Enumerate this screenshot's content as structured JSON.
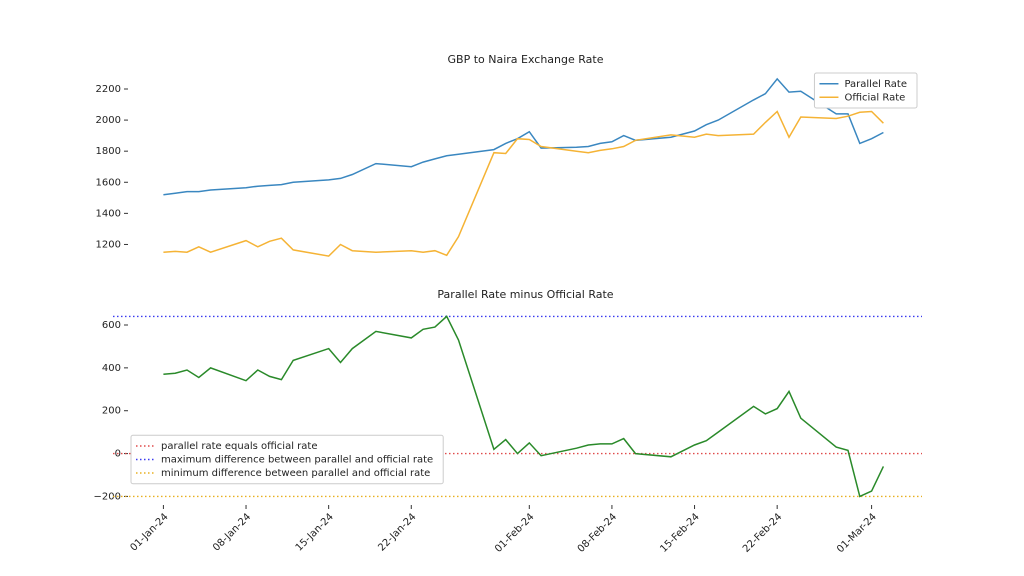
{
  "chart_data": [
    {
      "type": "line",
      "title": "GBP to Naira Exchange Rate",
      "x": [
        "2024-01-01",
        "2024-01-02",
        "2024-01-03",
        "2024-01-04",
        "2024-01-05",
        "2024-01-08",
        "2024-01-09",
        "2024-01-10",
        "2024-01-11",
        "2024-01-12",
        "2024-01-15",
        "2024-01-16",
        "2024-01-17",
        "2024-01-19",
        "2024-01-22",
        "2024-01-23",
        "2024-01-24",
        "2024-01-25",
        "2024-01-26",
        "2024-01-29",
        "2024-01-30",
        "2024-01-31",
        "2024-02-01",
        "2024-02-02",
        "2024-02-05",
        "2024-02-06",
        "2024-02-07",
        "2024-02-08",
        "2024-02-09",
        "2024-02-10",
        "2024-02-13",
        "2024-02-15",
        "2024-02-16",
        "2024-02-17",
        "2024-02-20",
        "2024-02-21",
        "2024-02-22",
        "2024-02-23",
        "2024-02-24",
        "2024-02-27",
        "2024-02-28",
        "2024-02-29",
        "2024-03-01",
        "2024-03-02"
      ],
      "series": [
        {
          "name": "Parallel Rate",
          "color": "#3a87c0",
          "values": [
            1520,
            1530,
            1540,
            1540,
            1550,
            1565,
            1575,
            1580,
            1585,
            1600,
            1615,
            1625,
            1650,
            1720,
            1700,
            1730,
            1750,
            1770,
            1780,
            1810,
            1850,
            1880,
            1925,
            1820,
            1825,
            1830,
            1850,
            1860,
            1900,
            1870,
            1890,
            1930,
            1970,
            2000,
            2130,
            2170,
            2265,
            2180,
            2185,
            2040,
            2040,
            1850,
            1880,
            1920
          ]
        },
        {
          "name": "Official Rate",
          "color": "#f5b335",
          "values": [
            1150,
            1155,
            1150,
            1185,
            1150,
            1225,
            1185,
            1220,
            1240,
            1165,
            1125,
            1200,
            1160,
            1150,
            1160,
            1150,
            1160,
            1130,
            1250,
            1790,
            1785,
            1880,
            1875,
            1830,
            1800,
            1790,
            1805,
            1815,
            1830,
            1870,
            1905,
            1890,
            1910,
            1900,
            1910,
            1985,
            2055,
            1890,
            2020,
            2010,
            2025,
            2050,
            2055,
            1980
          ]
        }
      ],
      "xlim": [
        "2023-12-29",
        "2024-03-04"
      ],
      "ylim": [
        1100,
        2290
      ],
      "yticks": [
        1200,
        1400,
        1600,
        1800,
        2000,
        2200
      ],
      "legend": "upper right"
    },
    {
      "type": "line",
      "title": "Parallel Rate minus Official Rate",
      "x": [
        "2024-01-01",
        "2024-01-02",
        "2024-01-03",
        "2024-01-04",
        "2024-01-05",
        "2024-01-08",
        "2024-01-09",
        "2024-01-10",
        "2024-01-11",
        "2024-01-12",
        "2024-01-15",
        "2024-01-16",
        "2024-01-17",
        "2024-01-19",
        "2024-01-22",
        "2024-01-23",
        "2024-01-24",
        "2024-01-25",
        "2024-01-26",
        "2024-01-29",
        "2024-01-30",
        "2024-01-31",
        "2024-02-01",
        "2024-02-02",
        "2024-02-05",
        "2024-02-06",
        "2024-02-07",
        "2024-02-08",
        "2024-02-09",
        "2024-02-10",
        "2024-02-13",
        "2024-02-15",
        "2024-02-16",
        "2024-02-17",
        "2024-02-20",
        "2024-02-21",
        "2024-02-22",
        "2024-02-23",
        "2024-02-24",
        "2024-02-27",
        "2024-02-28",
        "2024-02-29",
        "2024-03-01",
        "2024-03-02"
      ],
      "series": [
        {
          "color": "#2a8a2a",
          "values": [
            370,
            375,
            390,
            355,
            400,
            340,
            390,
            360,
            345,
            435,
            490,
            425,
            490,
            570,
            540,
            580,
            590,
            640,
            530,
            20,
            65,
            0,
            50,
            -10,
            25,
            40,
            45,
            45,
            70,
            0,
            -15,
            40,
            60,
            100,
            220,
            185,
            210,
            290,
            165,
            30,
            15,
            -200,
            -175,
            -60
          ]
        }
      ],
      "hlines": [
        {
          "value": 0,
          "label": "parallel rate equals official rate",
          "color": "#e04a4a"
        },
        {
          "value": 640,
          "label": "maximum difference between parallel and official rate",
          "color": "#3a3af0"
        },
        {
          "value": -200,
          "label": "minimum difference between parallel and official rate",
          "color": "#e8b020"
        }
      ],
      "xlim": [
        "2023-12-29",
        "2024-03-04"
      ],
      "xticks": [
        {
          "value": "2024-01-01",
          "label": "01-Jan-24"
        },
        {
          "value": "2024-01-08",
          "label": "08-Jan-24"
        },
        {
          "value": "2024-01-15",
          "label": "15-Jan-24"
        },
        {
          "value": "2024-01-22",
          "label": "22-Jan-24"
        },
        {
          "value": "2024-02-01",
          "label": "01-Feb-24"
        },
        {
          "value": "2024-02-08",
          "label": "08-Feb-24"
        },
        {
          "value": "2024-02-15",
          "label": "15-Feb-24"
        },
        {
          "value": "2024-02-22",
          "label": "22-Feb-24"
        },
        {
          "value": "2024-03-01",
          "label": "01-Mar-24"
        }
      ],
      "ylim": [
        -240,
        670
      ],
      "yticks": [
        {
          "value": -200,
          "label": "−200"
        },
        0,
        200,
        400,
        600
      ],
      "legend": "center left"
    }
  ]
}
